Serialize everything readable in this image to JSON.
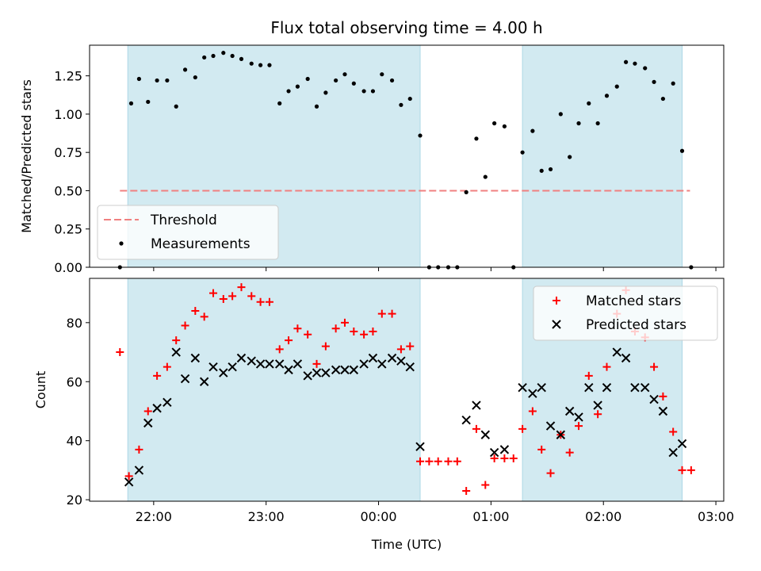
{
  "chart_data": [
    {
      "type": "scatter",
      "title": "Flux total observing time = 4.00 h",
      "xlabel": "",
      "ylabel": "Matched/Predicted stars",
      "ylim": [
        0,
        1.45
      ],
      "y_ticks": [
        "0.00",
        "0.25",
        "0.50",
        "0.75",
        "1.00",
        "1.25"
      ],
      "y_tick_values": [
        0,
        0.25,
        0.5,
        0.75,
        1.0,
        1.25
      ],
      "xlim_hours": [
        -2.57,
        3.07
      ],
      "shaded_regions": [
        [
          -2.23,
          0.37
        ],
        [
          1.28,
          2.7
        ]
      ],
      "shade_color": "#add8e6",
      "threshold": {
        "name": "Threshold",
        "y": 0.5,
        "x_range": [
          -2.3,
          2.77
        ],
        "color": "#f08080"
      },
      "legend": {
        "position": "lower-left",
        "entries": [
          "Threshold",
          "Measurements"
        ]
      },
      "series": [
        {
          "name": "Measurements",
          "color": "#000000",
          "marker": "dot",
          "points": [
            [
              -2.3,
              0
            ],
            [
              -2.2,
              1.07
            ],
            [
              -2.13,
              1.23
            ],
            [
              -2.05,
              1.08
            ],
            [
              -1.97,
              1.22
            ],
            [
              -1.88,
              1.22
            ],
            [
              -1.8,
              1.05
            ],
            [
              -1.72,
              1.29
            ],
            [
              -1.63,
              1.24
            ],
            [
              -1.55,
              1.37
            ],
            [
              -1.47,
              1.38
            ],
            [
              -1.38,
              1.4
            ],
            [
              -1.3,
              1.38
            ],
            [
              -1.22,
              1.36
            ],
            [
              -1.13,
              1.33
            ],
            [
              -1.05,
              1.32
            ],
            [
              -0.97,
              1.32
            ],
            [
              -0.88,
              1.07
            ],
            [
              -0.8,
              1.15
            ],
            [
              -0.72,
              1.18
            ],
            [
              -0.63,
              1.23
            ],
            [
              -0.55,
              1.05
            ],
            [
              -0.47,
              1.14
            ],
            [
              -0.38,
              1.22
            ],
            [
              -0.3,
              1.26
            ],
            [
              -0.22,
              1.2
            ],
            [
              -0.13,
              1.15
            ],
            [
              -0.05,
              1.15
            ],
            [
              0.03,
              1.26
            ],
            [
              0.12,
              1.22
            ],
            [
              0.2,
              1.06
            ],
            [
              0.28,
              1.1
            ],
            [
              0.37,
              0.86
            ],
            [
              0.45,
              0
            ],
            [
              0.53,
              0
            ],
            [
              0.62,
              0
            ],
            [
              0.7,
              0
            ],
            [
              0.78,
              0.49
            ],
            [
              0.87,
              0.84
            ],
            [
              0.95,
              0.59
            ],
            [
              1.03,
              0.94
            ],
            [
              1.12,
              0.92
            ],
            [
              1.2,
              0
            ],
            [
              1.28,
              0.75
            ],
            [
              1.37,
              0.89
            ],
            [
              1.45,
              0.63
            ],
            [
              1.53,
              0.64
            ],
            [
              1.62,
              1.0
            ],
            [
              1.7,
              0.72
            ],
            [
              1.78,
              0.94
            ],
            [
              1.87,
              1.07
            ],
            [
              1.95,
              0.94
            ],
            [
              2.03,
              1.12
            ],
            [
              2.12,
              1.18
            ],
            [
              2.2,
              1.34
            ],
            [
              2.28,
              1.33
            ],
            [
              2.37,
              1.3
            ],
            [
              2.45,
              1.21
            ],
            [
              2.53,
              1.1
            ],
            [
              2.62,
              1.2
            ],
            [
              2.7,
              0.76
            ],
            [
              2.78,
              0
            ]
          ]
        }
      ]
    },
    {
      "type": "scatter",
      "title": "",
      "xlabel": "Time (UTC)",
      "ylabel": "Count",
      "ylim": [
        19.5,
        95
      ],
      "y_ticks": [
        "20",
        "40",
        "60",
        "80"
      ],
      "y_tick_values": [
        20,
        40,
        60,
        80
      ],
      "x_ticks": [
        "22:00",
        "23:00",
        "00:00",
        "01:00",
        "02:00",
        "03:00"
      ],
      "x_tick_values": [
        -2,
        -1,
        0,
        1,
        2,
        3
      ],
      "xlim_hours": [
        -2.57,
        3.07
      ],
      "shaded_regions": [
        [
          -2.23,
          0.37
        ],
        [
          1.28,
          2.7
        ]
      ],
      "shade_color": "#add8e6",
      "legend": {
        "position": "upper-right",
        "entries": [
          "Matched stars",
          "Predicted stars"
        ]
      },
      "series": [
        {
          "name": "Matched stars",
          "color": "#ff0000",
          "marker": "plus",
          "points": [
            [
              -2.3,
              70
            ],
            [
              -2.22,
              28
            ],
            [
              -2.13,
              37
            ],
            [
              -2.05,
              50
            ],
            [
              -1.97,
              62
            ],
            [
              -1.88,
              65
            ],
            [
              -1.8,
              74
            ],
            [
              -1.72,
              79
            ],
            [
              -1.63,
              84
            ],
            [
              -1.55,
              82
            ],
            [
              -1.47,
              90
            ],
            [
              -1.38,
              88
            ],
            [
              -1.3,
              89
            ],
            [
              -1.22,
              92
            ],
            [
              -1.13,
              89
            ],
            [
              -1.05,
              87
            ],
            [
              -0.97,
              87
            ],
            [
              -0.88,
              71
            ],
            [
              -0.8,
              74
            ],
            [
              -0.72,
              78
            ],
            [
              -0.63,
              76
            ],
            [
              -0.55,
              66
            ],
            [
              -0.47,
              72
            ],
            [
              -0.38,
              78
            ],
            [
              -0.3,
              80
            ],
            [
              -0.22,
              77
            ],
            [
              -0.13,
              76
            ],
            [
              -0.05,
              77
            ],
            [
              0.03,
              83
            ],
            [
              0.12,
              83
            ],
            [
              0.2,
              71
            ],
            [
              0.28,
              72
            ],
            [
              0.37,
              33
            ],
            [
              0.45,
              33
            ],
            [
              0.53,
              33
            ],
            [
              0.62,
              33
            ],
            [
              0.7,
              33
            ],
            [
              0.78,
              23
            ],
            [
              0.87,
              44
            ],
            [
              0.95,
              25
            ],
            [
              1.03,
              34
            ],
            [
              1.12,
              34
            ],
            [
              1.2,
              34
            ],
            [
              1.28,
              44
            ],
            [
              1.37,
              50
            ],
            [
              1.45,
              37
            ],
            [
              1.53,
              29
            ],
            [
              1.62,
              42
            ],
            [
              1.7,
              36
            ],
            [
              1.78,
              45
            ],
            [
              1.87,
              62
            ],
            [
              1.95,
              49
            ],
            [
              2.03,
              65
            ],
            [
              2.12,
              83
            ],
            [
              2.2,
              91
            ],
            [
              2.28,
              77
            ],
            [
              2.37,
              75
            ],
            [
              2.45,
              65
            ],
            [
              2.53,
              55
            ],
            [
              2.62,
              43
            ],
            [
              2.7,
              30
            ],
            [
              2.78,
              30
            ]
          ]
        },
        {
          "name": "Predicted stars",
          "color": "#000000",
          "marker": "x",
          "points": [
            [
              -2.22,
              26
            ],
            [
              -2.13,
              30
            ],
            [
              -2.05,
              46
            ],
            [
              -1.97,
              51
            ],
            [
              -1.88,
              53
            ],
            [
              -1.8,
              70
            ],
            [
              -1.72,
              61
            ],
            [
              -1.63,
              68
            ],
            [
              -1.55,
              60
            ],
            [
              -1.47,
              65
            ],
            [
              -1.38,
              63
            ],
            [
              -1.3,
              65
            ],
            [
              -1.22,
              68
            ],
            [
              -1.13,
              67
            ],
            [
              -1.05,
              66
            ],
            [
              -0.97,
              66
            ],
            [
              -0.88,
              66
            ],
            [
              -0.8,
              64
            ],
            [
              -0.72,
              66
            ],
            [
              -0.63,
              62
            ],
            [
              -0.55,
              63
            ],
            [
              -0.47,
              63
            ],
            [
              -0.38,
              64
            ],
            [
              -0.3,
              64
            ],
            [
              -0.22,
              64
            ],
            [
              -0.13,
              66
            ],
            [
              -0.05,
              68
            ],
            [
              0.03,
              66
            ],
            [
              0.12,
              68
            ],
            [
              0.2,
              67
            ],
            [
              0.28,
              65
            ],
            [
              0.37,
              38
            ],
            [
              0.78,
              47
            ],
            [
              0.87,
              52
            ],
            [
              0.95,
              42
            ],
            [
              1.03,
              36
            ],
            [
              1.12,
              37
            ],
            [
              1.28,
              58
            ],
            [
              1.37,
              56
            ],
            [
              1.45,
              58
            ],
            [
              1.53,
              45
            ],
            [
              1.62,
              42
            ],
            [
              1.7,
              50
            ],
            [
              1.78,
              48
            ],
            [
              1.87,
              58
            ],
            [
              1.95,
              52
            ],
            [
              2.03,
              58
            ],
            [
              2.12,
              70
            ],
            [
              2.2,
              68
            ],
            [
              2.28,
              58
            ],
            [
              2.37,
              58
            ],
            [
              2.45,
              54
            ],
            [
              2.53,
              50
            ],
            [
              2.62,
              36
            ],
            [
              2.7,
              39
            ]
          ]
        }
      ]
    }
  ]
}
